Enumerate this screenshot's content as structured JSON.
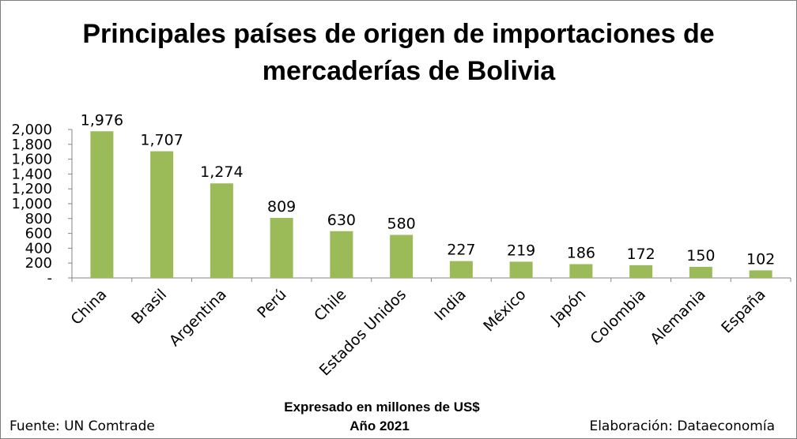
{
  "chart_data": {
    "type": "bar",
    "title_line1": "Principales países de origen de importaciones de",
    "title_line2": "mercaderías de Bolivia",
    "categories": [
      "China",
      "Brasil",
      "Argentina",
      "Perú",
      "Chile",
      "Estados Unidos",
      "India",
      "México",
      "Japón",
      "Colombia",
      "Alemania",
      "España"
    ],
    "values": [
      1976,
      1707,
      1274,
      809,
      630,
      580,
      227,
      219,
      186,
      172,
      150,
      102
    ],
    "data_labels": [
      "1,976",
      "1,707",
      "1,274",
      "809",
      "630",
      "580",
      "227",
      "219",
      "186",
      "172",
      "150",
      "102"
    ],
    "yticks": [
      0,
      200,
      400,
      600,
      800,
      1000,
      1200,
      1400,
      1600,
      1800,
      2000
    ],
    "ytick_labels": [
      "-",
      "200",
      "400",
      "600",
      "800",
      "1,000",
      "1,200",
      "1,400",
      "1,600",
      "1,800",
      "2,000"
    ],
    "ylim": [
      0,
      2000
    ],
    "bar_color": "#9BBB59",
    "grid": false,
    "legend": "none",
    "xlabel": "",
    "ylabel": ""
  },
  "footer": {
    "source": "Fuente: UN Comtrade",
    "unit_line": "Expresado en millones de US$",
    "year_line": "Año 2021",
    "credit": "Elaboración: Dataeconomía"
  }
}
